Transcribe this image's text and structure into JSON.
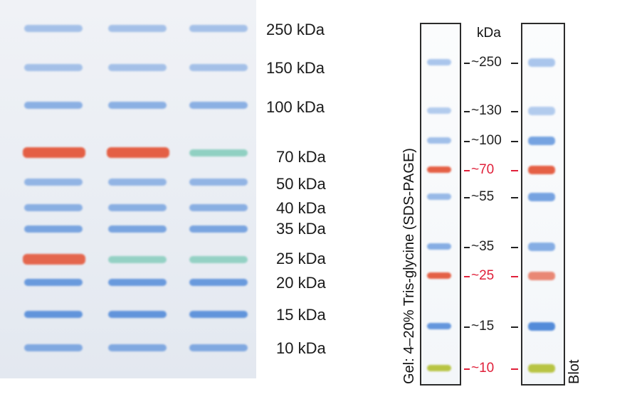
{
  "left_labels": [
    "250 kDa",
    "150 kDa",
    "100 kDa",
    "70 kDa",
    "50 kDa",
    "40 kDa",
    "35 kDa",
    "25 kDa",
    "20 kDa",
    "15 kDa",
    "10 kDa"
  ],
  "right": {
    "unit": "kDa",
    "gel_caption": "Gel: 4–20% Tris-glycine (SDS-PAGE)",
    "blot_caption": "Blot",
    "markers": [
      "~250",
      "~130",
      "~100",
      "~70",
      "~55",
      "~35",
      "~25",
      "~15",
      "~10"
    ]
  },
  "colors": {
    "blue": "#4b86d8",
    "red": "#e4583c",
    "teal": "#8ccfc0",
    "green": "#b5c23a",
    "marker_red": "#e0203a"
  }
}
